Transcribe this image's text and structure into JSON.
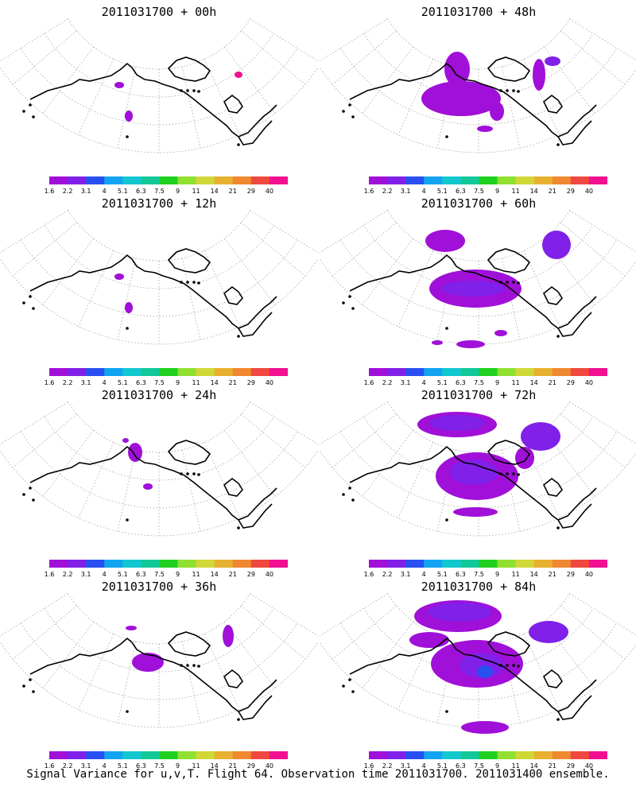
{
  "caption": "Signal Variance for u,v,T. Flight 64. Observation time 2011031700. 2011031400 ensemble.",
  "colorbar": {
    "labels": [
      "1.6",
      "2.2",
      "3.1",
      "4",
      "5.1",
      "6.3",
      "7.5",
      "9",
      "11",
      "14",
      "21",
      "29",
      "40"
    ],
    "colors": [
      "#a010d8",
      "#8020e8",
      "#2850f0",
      "#12a4f0",
      "#12c8d0",
      "#12c898",
      "#20d020",
      "#90e030",
      "#d0d838",
      "#e8b030",
      "#f08830",
      "#f04840",
      "#f01090"
    ]
  },
  "panels": [
    {
      "title": "2011031700 + 00h",
      "level": 0
    },
    {
      "title": "2011031700 + 48h",
      "level": 3
    },
    {
      "title": "2011031700 + 12h",
      "level": 0
    },
    {
      "title": "2011031700 + 60h",
      "level": 4
    },
    {
      "title": "2011031700 + 24h",
      "level": 1
    },
    {
      "title": "2011031700 + 72h",
      "level": 5
    },
    {
      "title": "2011031700 + 36h",
      "level": 2
    },
    {
      "title": "2011031700 + 84h",
      "level": 6
    }
  ]
}
